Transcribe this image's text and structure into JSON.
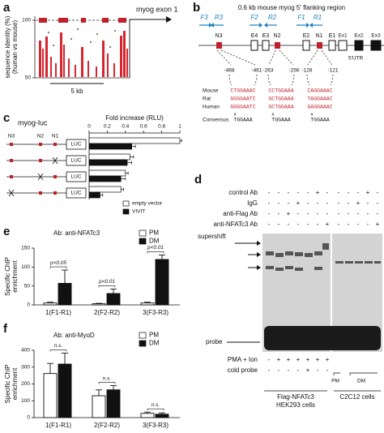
{
  "panel_a": {
    "label": "a",
    "annotation": "myog exon 1",
    "ylabel": [
      "sequence identity (%)",
      "(human vs mouse)"
    ],
    "ylim": [
      50,
      100
    ],
    "yticks": [
      50,
      100
    ],
    "scale": "5 kb"
  },
  "panel_b": {
    "label": "b",
    "title": "0.6 kb mouse myog 5′ flanking region",
    "primers": [
      "F3",
      "R3",
      "F2",
      "R2",
      "F1",
      "R1"
    ],
    "elements": [
      "N3",
      "E4",
      "E3",
      "N2",
      "E2",
      "N1",
      "E1"
    ],
    "exons": [
      "Ex1",
      "Ex2",
      "Ex3"
    ],
    "utr": "5'UTR",
    "positions": [
      -468,
      -461,
      -263,
      -256,
      -128,
      -121
    ],
    "species": [
      "Mouse",
      "Rat",
      "Human",
      "Consensus"
    ],
    "sequences": [
      [
        "CTGGAAAC",
        "GGGGAATC",
        "GGGGAATC"
      ],
      [
        "CCTGGAAA",
        "GCTGGAAA",
        "GCTGGAAA"
      ],
      [
        "CAGGAAAC",
        "TAGGAAAC",
        "GAGGAAAC"
      ]
    ],
    "consensus": [
      {
        "top": "A",
        "bottom": "TGGAAA"
      },
      {
        "top": "A",
        "bottom": "TGGAAA"
      },
      {
        "top": "A",
        "bottom": "TGGAAA"
      }
    ]
  },
  "panel_c": {
    "label": "c",
    "construct_title": "myog-luc",
    "sites": [
      "N3",
      "N2",
      "N1"
    ],
    "reporter": "LUC",
    "chart": {
      "type": "barh",
      "title": "Fold increase (RLU)",
      "xlim": [
        0,
        1
      ],
      "xticks": [
        0,
        0.2,
        0.4,
        0.6,
        0.8,
        1
      ],
      "series": [
        {
          "name": "empty vector",
          "color": "#ffffff",
          "values": [
            1,
            0.45,
            0.4,
            0.35
          ],
          "errors": [
            0.02,
            0.04,
            0.03,
            0.03
          ]
        },
        {
          "name": "VIVIT",
          "color": "#111111",
          "values": [
            0.47,
            0.42,
            0.35,
            0.12
          ],
          "errors": [
            0.04,
            0.05,
            0.05,
            0.03
          ]
        }
      ]
    }
  },
  "panel_d": {
    "label": "d",
    "treatments": [
      {
        "name": "control Ab",
        "signs": [
          "-",
          "-",
          "-",
          "-",
          "-",
          "+",
          "-",
          "-",
          "-",
          "-",
          "+",
          "-"
        ]
      },
      {
        "name": "IgG",
        "signs": [
          "-",
          "-",
          "-",
          "+",
          "-",
          "-",
          "-",
          "-",
          "-",
          "+",
          "-",
          "-"
        ]
      },
      {
        "name": "anti-Flag Ab",
        "signs": [
          "-",
          "-",
          "+",
          "-",
          "-",
          "-",
          "-",
          "-",
          "-",
          "-",
          "-",
          "-"
        ]
      },
      {
        "name": "anti-NFATc3 Ab",
        "signs": [
          "-",
          "-",
          "-",
          "-",
          "-",
          "-",
          "+",
          "-",
          "-",
          "-",
          "-",
          "+"
        ]
      }
    ],
    "bands": [
      "supershift",
      "probe"
    ],
    "conditions": [
      {
        "name": "PMA + Ion",
        "signs": [
          "-",
          "+",
          "+",
          "+",
          "+",
          "+",
          "+"
        ]
      },
      {
        "name": "cold probe",
        "signs": [
          "-",
          "-",
          "-",
          "-",
          "+",
          "-",
          "-"
        ]
      }
    ],
    "c2c12_states": [
      "PM",
      "DM"
    ],
    "groups": [
      [
        "Flag-NFATc3",
        "HEK293 cells"
      ],
      [
        "C2C12 cells"
      ]
    ]
  },
  "panel_e": {
    "label": "e",
    "chart": {
      "type": "bar",
      "title": "Ab: anti-NFATc3",
      "ylabel": [
        "Specific ChIP",
        "enrichment"
      ],
      "categories": [
        "1(F1-R1)",
        "2(F2-R2)",
        "3(F3-R3)"
      ],
      "ylim": [
        0,
        150
      ],
      "yticks": [
        0,
        50,
        100,
        150
      ],
      "series": [
        {
          "name": "PM",
          "color": "#ffffff",
          "values": [
            5,
            3,
            5
          ],
          "errors": [
            2,
            1,
            2
          ]
        },
        {
          "name": "DM",
          "color": "#111111",
          "values": [
            57,
            30,
            120
          ],
          "errors": [
            35,
            12,
            12
          ]
        }
      ],
      "annotations": [
        "p<0.05",
        "p<0.01",
        "p<0.01"
      ]
    }
  },
  "panel_f": {
    "label": "f",
    "chart": {
      "type": "bar",
      "title": "Ab: anti-MyoD",
      "ylabel": [
        "Specific ChIP",
        "enrichment"
      ],
      "categories": [
        "1(F1-R1)",
        "2(F2-R2)",
        "3(F3-R3)"
      ],
      "ylim": [
        0,
        400
      ],
      "yticks": [
        0,
        100,
        200,
        300,
        400
      ],
      "series": [
        {
          "name": "PM",
          "color": "#ffffff",
          "values": [
            262,
            130,
            25
          ],
          "errors": [
            60,
            35,
            8
          ]
        },
        {
          "name": "DM",
          "color": "#111111",
          "values": [
            318,
            165,
            20
          ],
          "errors": [
            65,
            25,
            8
          ]
        }
      ],
      "annotations": [
        "n.s.",
        "n.s.",
        "n.s."
      ]
    }
  }
}
